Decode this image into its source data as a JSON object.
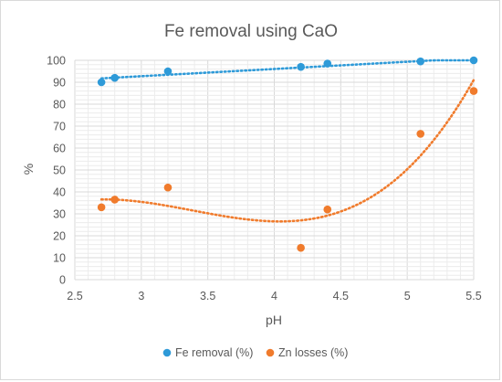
{
  "chart_data": {
    "type": "scatter",
    "title": "Fe removal  using CaO",
    "xlabel": "pH",
    "ylabel": "%",
    "xlim": [
      2.5,
      5.5
    ],
    "ylim": [
      0,
      100
    ],
    "x_ticks": [
      2.5,
      3,
      3.5,
      4,
      4.5,
      5,
      5.5
    ],
    "x_tick_labels": [
      "2.5",
      "3",
      "3.5",
      "4",
      "4.5",
      "5",
      "5.5"
    ],
    "y_ticks": [
      0,
      10,
      20,
      30,
      40,
      50,
      60,
      70,
      80,
      90,
      100
    ],
    "y_tick_labels": [
      "0",
      "10",
      "20",
      "30",
      "40",
      "50",
      "60",
      "70",
      "80",
      "90",
      "100"
    ],
    "grid": true,
    "legend_position": "bottom",
    "series": [
      {
        "name": "Fe removal (%)",
        "color": "#2e9ad8",
        "x": [
          2.7,
          2.8,
          3.2,
          4.2,
          4.4,
          5.1,
          5.5
        ],
        "y": [
          90,
          92,
          95,
          97,
          98.5,
          99.5,
          100
        ],
        "trendline": "linear"
      },
      {
        "name": "Zn losses (%)",
        "color": "#f07b2c",
        "x": [
          2.7,
          2.8,
          3.2,
          4.2,
          4.4,
          5.1,
          5.5
        ],
        "y": [
          33,
          36.5,
          42,
          14.5,
          32,
          66.5,
          86
        ],
        "trendline": "polynomial"
      }
    ]
  }
}
